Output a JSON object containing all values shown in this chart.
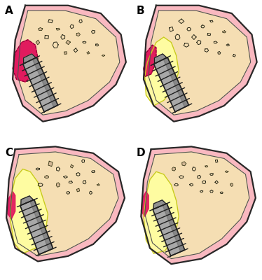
{
  "bg": "#ffffff",
  "bone_fill": "#f5deb3",
  "gum_fill": "#f9b8c0",
  "implant_body": "#a8a8a8",
  "implant_light": "#c8c8c8",
  "implant_dark": "#686868",
  "implant_edge": "#202020",
  "pink_tissue": "#e0105a",
  "pink_edge": "#800030",
  "yellow_fill": "#ffffa0",
  "yellow_edge": "#c8c820",
  "frag_fill": "#d4b896",
  "frag_edge": "#383818",
  "label_size": 11,
  "panels": [
    "A",
    "B",
    "C",
    "D"
  ]
}
